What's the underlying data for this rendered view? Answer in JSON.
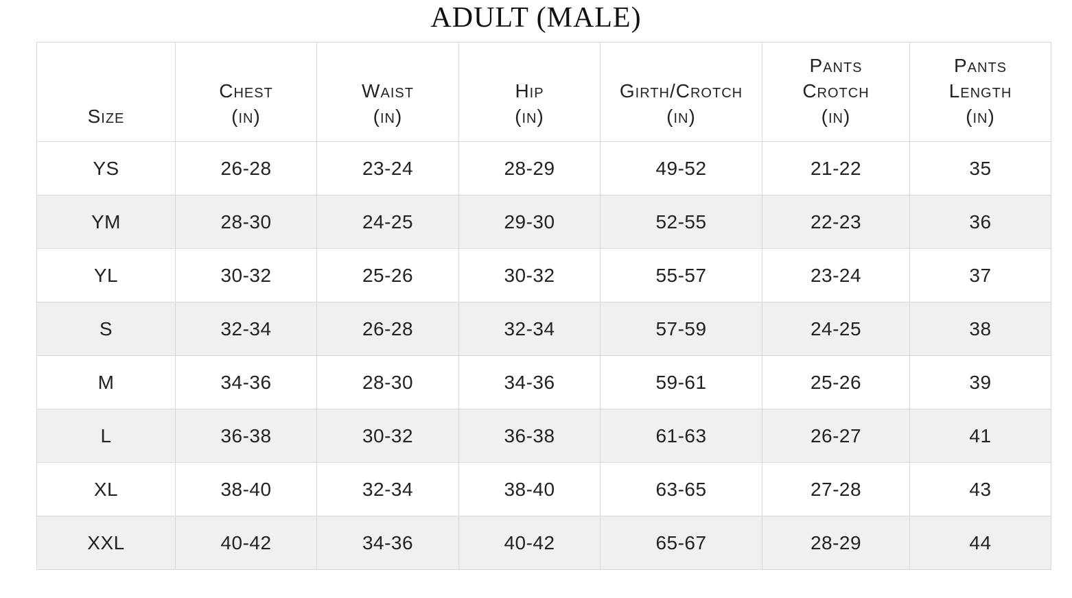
{
  "title": "ADULT (MALE)",
  "table": {
    "columns": [
      {
        "id": "size",
        "lines": [
          "Size"
        ]
      },
      {
        "id": "chest",
        "lines": [
          "Chest",
          "(in)"
        ]
      },
      {
        "id": "waist",
        "lines": [
          "Waist",
          "(in)"
        ]
      },
      {
        "id": "hip",
        "lines": [
          "Hip",
          "(in)"
        ]
      },
      {
        "id": "girth-crotch",
        "lines": [
          "Girth/Crotch",
          "(in)"
        ]
      },
      {
        "id": "pants-crotch",
        "lines": [
          "Pants",
          "Crotch",
          "(in)"
        ]
      },
      {
        "id": "pants-length",
        "lines": [
          "Pants",
          "Length",
          "(in)"
        ]
      }
    ],
    "rows": [
      {
        "size": "YS",
        "values": [
          "26-28",
          "23-24",
          "28-29",
          "49-52",
          "21-22",
          "35"
        ]
      },
      {
        "size": "YM",
        "values": [
          "28-30",
          "24-25",
          "29-30",
          "52-55",
          "22-23",
          "36"
        ]
      },
      {
        "size": "YL",
        "values": [
          "30-32",
          "25-26",
          "30-32",
          "55-57",
          "23-24",
          "37"
        ]
      },
      {
        "size": "S",
        "values": [
          "32-34",
          "26-28",
          "32-34",
          "57-59",
          "24-25",
          "38"
        ]
      },
      {
        "size": "M",
        "values": [
          "34-36",
          "28-30",
          "34-36",
          "59-61",
          "25-26",
          "39"
        ]
      },
      {
        "size": "L",
        "values": [
          "36-38",
          "30-32",
          "36-38",
          "61-63",
          "26-27",
          "41"
        ]
      },
      {
        "size": "XL",
        "values": [
          "38-40",
          "32-34",
          "38-40",
          "63-65",
          "27-28",
          "43"
        ]
      },
      {
        "size": "XXL",
        "values": [
          "40-42",
          "34-36",
          "40-42",
          "65-67",
          "28-29",
          "44"
        ]
      }
    ]
  },
  "colors": {
    "stripe": "#f0f0f0",
    "border": "#d8d8d8",
    "text": "#222222",
    "background": "#ffffff"
  },
  "chart_data": {
    "type": "table",
    "title": "ADULT (MALE)",
    "columns": [
      "Size",
      "Chest (in)",
      "Waist (in)",
      "Hip (in)",
      "Girth/Crotch (in)",
      "Pants Crotch (in)",
      "Pants Length (in)"
    ],
    "rows": [
      [
        "YS",
        "26-28",
        "23-24",
        "28-29",
        "49-52",
        "21-22",
        "35"
      ],
      [
        "YM",
        "28-30",
        "24-25",
        "29-30",
        "52-55",
        "22-23",
        "36"
      ],
      [
        "YL",
        "30-32",
        "25-26",
        "30-32",
        "55-57",
        "23-24",
        "37"
      ],
      [
        "S",
        "32-34",
        "26-28",
        "32-34",
        "57-59",
        "24-25",
        "38"
      ],
      [
        "M",
        "34-36",
        "28-30",
        "34-36",
        "59-61",
        "25-26",
        "39"
      ],
      [
        "L",
        "36-38",
        "30-32",
        "36-38",
        "61-63",
        "26-27",
        "41"
      ],
      [
        "XL",
        "38-40",
        "32-34",
        "38-40",
        "63-65",
        "27-28",
        "43"
      ],
      [
        "XXL",
        "40-42",
        "34-36",
        "40-42",
        "65-67",
        "28-29",
        "44"
      ]
    ],
    "layout": {
      "striped_rows": "even rows shaded",
      "grid": "full 1px light-gray grid",
      "header_style": "small-caps, bottom-aligned"
    }
  }
}
